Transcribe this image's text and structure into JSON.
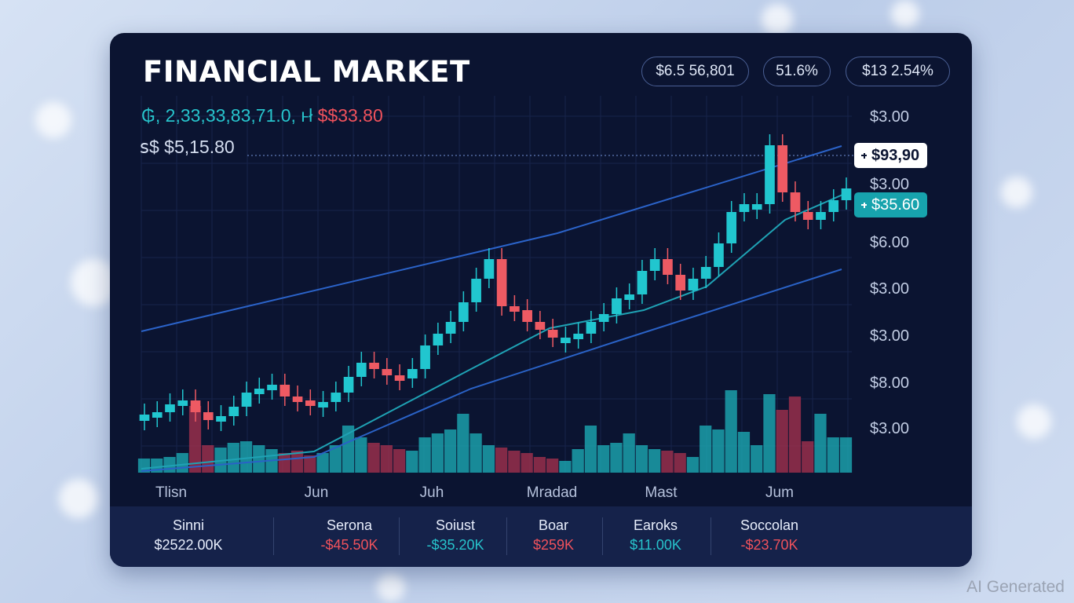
{
  "header": {
    "title": "FINANCIAL MARKET",
    "badges": [
      "$6.5 56,801",
      "51.6%",
      "$13 2.54%"
    ]
  },
  "ticker": {
    "line1_prefix": "₲, 2,33,33,83,71.0, ⱶł",
    "line1_price": "$$33.80",
    "line2": "ꜱ$ $5,15.80"
  },
  "price_tags": [
    "$93,90",
    "$35.60"
  ],
  "y_axis_labels": [
    "$3.00",
    "$3.00",
    "$6.00",
    "$3.00",
    "$3.00",
    "$8.00",
    "$3.00"
  ],
  "x_axis_labels": [
    "Tlisn",
    "Jun",
    "Juh",
    "Mradad",
    "Mast",
    "Jum"
  ],
  "footer": {
    "stats": [
      {
        "name": "Sinni",
        "value": "$2522.00K"
      },
      {
        "name": "Serona",
        "value": "-$45.50K"
      },
      {
        "name": "Soiust",
        "value": "-$35.20K"
      },
      {
        "name": "Boar",
        "value": "$259K"
      },
      {
        "name": "Earoks",
        "value": "$11.00K"
      },
      {
        "name": "Soccolan",
        "value": "-$23.70K"
      }
    ]
  },
  "watermark": "AI Generated"
}
